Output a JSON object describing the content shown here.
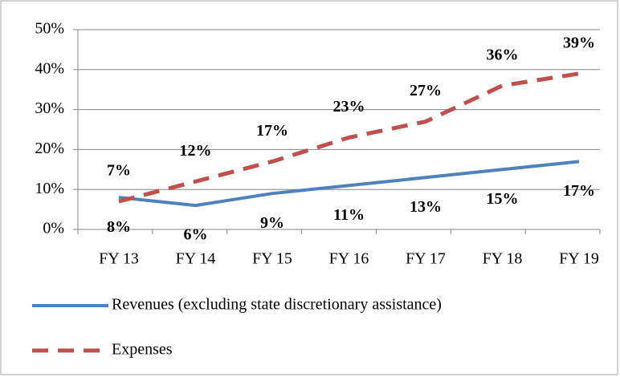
{
  "chart_data": {
    "type": "line",
    "categories": [
      "FY 13",
      "FY 14",
      "FY 15",
      "FY 16",
      "FY 17",
      "FY 18",
      "FY 19"
    ],
    "series": [
      {
        "name": "Revenues (excluding state discretionary assistance)",
        "color": "#4f81bd",
        "style": "solid",
        "values": [
          8,
          6,
          9,
          11,
          13,
          15,
          17
        ],
        "value_labels": [
          "8%",
          "6%",
          "9%",
          "11%",
          "13%",
          "15%",
          "17%"
        ]
      },
      {
        "name": "Expenses",
        "color": "#c0504d",
        "style": "dashed",
        "values": [
          7,
          12,
          17,
          23,
          27,
          36,
          39
        ],
        "value_labels": [
          "7%",
          "12%",
          "17%",
          "23%",
          "27%",
          "36%",
          "39%"
        ]
      }
    ],
    "ylim": [
      0,
      50
    ],
    "yticks": [
      {
        "value": 0,
        "label": "0%"
      },
      {
        "value": 10,
        "label": "10%"
      },
      {
        "value": 20,
        "label": "20%"
      },
      {
        "value": 30,
        "label": "30%"
      },
      {
        "value": 40,
        "label": "40%"
      },
      {
        "value": 50,
        "label": "50%"
      }
    ],
    "grid": true,
    "legend": "bottom"
  }
}
